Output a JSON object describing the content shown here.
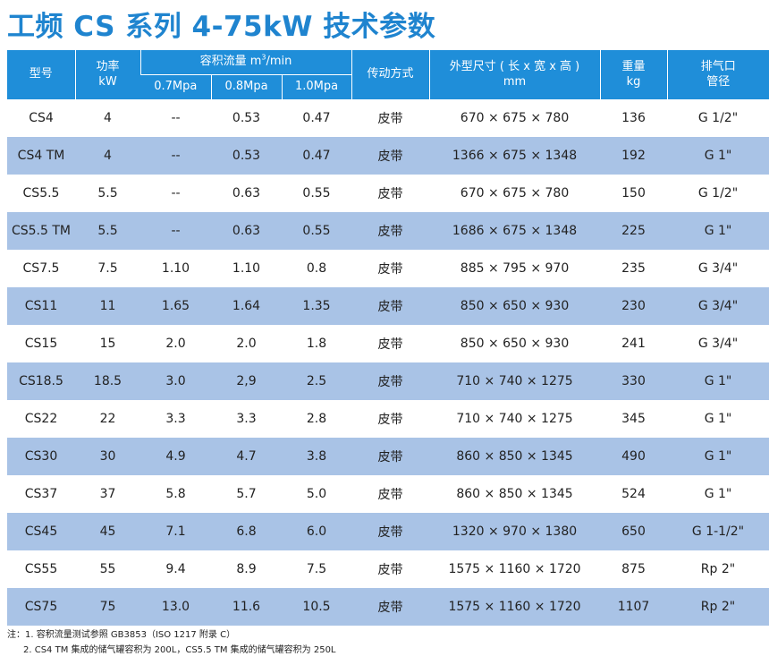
{
  "title": "工频 CS 系列 4-75kW 技术参数",
  "headers": {
    "model": "型号",
    "power_line1": "功率",
    "power_line2": "kW",
    "flow_prefix": "容积流量 m",
    "flow_sup": "3",
    "flow_suffix": "/min",
    "p07": "0.7Mpa",
    "p08": "0.8Mpa",
    "p10": "1.0Mpa",
    "drive": "传动方式",
    "dims_line1": "外型尺寸 ( 长 x 宽 x 高 )",
    "dims_line2": "mm",
    "weight_line1": "重量",
    "weight_line2": "kg",
    "outlet_line1": "排气口",
    "outlet_line2": "管径"
  },
  "rows": [
    {
      "model": "CS4",
      "power": "4",
      "f07": "--",
      "f08": "0.53",
      "f10": "0.47",
      "drive": "皮带",
      "dims": "670 × 675 × 780",
      "weight": "136",
      "outlet": "G 1/2\""
    },
    {
      "model": "CS4 TM",
      "power": "4",
      "f07": "--",
      "f08": "0.53",
      "f10": "0.47",
      "drive": "皮带",
      "dims": "1366 × 675 × 1348",
      "weight": "192",
      "outlet": "G 1\""
    },
    {
      "model": "CS5.5",
      "power": "5.5",
      "f07": "--",
      "f08": "0.63",
      "f10": "0.55",
      "drive": "皮带",
      "dims": "670 × 675 × 780",
      "weight": "150",
      "outlet": "G 1/2\""
    },
    {
      "model": "CS5.5 TM",
      "power": "5.5",
      "f07": "--",
      "f08": "0.63",
      "f10": "0.55",
      "drive": "皮带",
      "dims": "1686 × 675 × 1348",
      "weight": "225",
      "outlet": "G 1\""
    },
    {
      "model": "CS7.5",
      "power": "7.5",
      "f07": "1.10",
      "f08": "1.10",
      "f10": "0.8",
      "drive": "皮带",
      "dims": "885 × 795 × 970",
      "weight": "235",
      "outlet": "G 3/4\""
    },
    {
      "model": "CS11",
      "power": "11",
      "f07": "1.65",
      "f08": "1.64",
      "f10": "1.35",
      "drive": "皮带",
      "dims": "850 × 650 × 930",
      "weight": "230",
      "outlet": "G 3/4\""
    },
    {
      "model": "CS15",
      "power": "15",
      "f07": "2.0",
      "f08": "2.0",
      "f10": "1.8",
      "drive": "皮带",
      "dims": "850 × 650 × 930",
      "weight": "241",
      "outlet": "G 3/4\""
    },
    {
      "model": "CS18.5",
      "power": "18.5",
      "f07": "3.0",
      "f08": "2,9",
      "f10": "2.5",
      "drive": "皮带",
      "dims": "710 × 740 × 1275",
      "weight": "330",
      "outlet": "G 1\""
    },
    {
      "model": "CS22",
      "power": "22",
      "f07": "3.3",
      "f08": "3.3",
      "f10": "2.8",
      "drive": "皮带",
      "dims": "710 × 740 × 1275",
      "weight": "345",
      "outlet": "G 1\""
    },
    {
      "model": "CS30",
      "power": "30",
      "f07": "4.9",
      "f08": "4.7",
      "f10": "3.8",
      "drive": "皮带",
      "dims": "860 × 850 × 1345",
      "weight": "490",
      "outlet": "G 1\""
    },
    {
      "model": "CS37",
      "power": "37",
      "f07": "5.8",
      "f08": "5.7",
      "f10": "5.0",
      "drive": "皮带",
      "dims": "860 × 850 × 1345",
      "weight": "524",
      "outlet": "G 1\""
    },
    {
      "model": "CS45",
      "power": "45",
      "f07": "7.1",
      "f08": "6.8",
      "f10": "6.0",
      "drive": "皮带",
      "dims": "1320 × 970 × 1380",
      "weight": "650",
      "outlet": "G 1-1/2\""
    },
    {
      "model": "CS55",
      "power": "55",
      "f07": "9.4",
      "f08": "8.9",
      "f10": "7.5",
      "drive": "皮带",
      "dims": "1575 × 1160 × 1720",
      "weight": "875",
      "outlet": "Rp 2\""
    },
    {
      "model": "CS75",
      "power": "75",
      "f07": "13.0",
      "f08": "11.6",
      "f10": "10.5",
      "drive": "皮带",
      "dims": "1575 × 1160 × 1720",
      "weight": "1107",
      "outlet": "Rp 2\""
    }
  ],
  "notes": {
    "note1": "注：1. 容积流量测试参照 GB3853（ISO 1217 附录 C）",
    "note2": "2. CS4 TM 集成的储气罐容积为 200L，CS5.5 TM 集成的储气罐容积为 250L"
  },
  "colors": {
    "title": "#1f84cf",
    "header_bg": "#1f8ed9",
    "row_stripe": "#a9c3e6"
  }
}
